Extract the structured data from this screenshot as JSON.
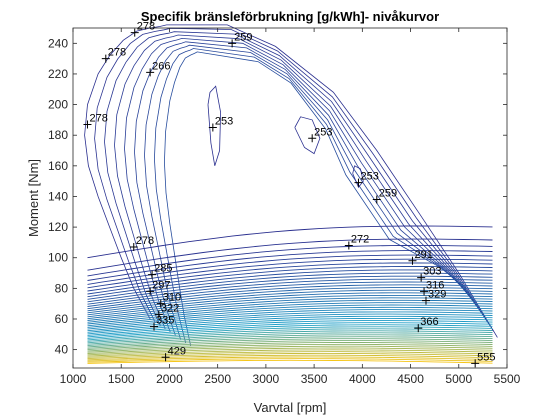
{
  "chart_data": {
    "type": "contour",
    "title": "Specifik bränsleförbrukning [g/kWh]- nivåkurvor",
    "xlabel": "Varvtal [rpm]",
    "ylabel": "Moment [Nm]",
    "xlim": [
      1000,
      5500
    ],
    "ylim": [
      28,
      250
    ],
    "xticks": [
      1000,
      1500,
      2000,
      2500,
      3000,
      3500,
      4000,
      4500,
      5000,
      5500
    ],
    "yticks": [
      40,
      60,
      80,
      100,
      120,
      140,
      160,
      180,
      200,
      220,
      240
    ],
    "grid": false,
    "colors": {
      "low": "#2a2f8f",
      "mid": "#1ea0c8",
      "high": "#f5c518"
    },
    "annotations": [
      {
        "label": "278",
        "x": 1640,
        "y": 247
      },
      {
        "label": "259",
        "x": 2650,
        "y": 240
      },
      {
        "label": "278",
        "x": 1340,
        "y": 230
      },
      {
        "label": "266",
        "x": 1800,
        "y": 221
      },
      {
        "label": "278",
        "x": 1150,
        "y": 187
      },
      {
        "label": "253",
        "x": 2450,
        "y": 185
      },
      {
        "label": "253",
        "x": 3480,
        "y": 178
      },
      {
        "label": "253",
        "x": 3960,
        "y": 149
      },
      {
        "label": "259",
        "x": 4150,
        "y": 138
      },
      {
        "label": "278",
        "x": 1630,
        "y": 107
      },
      {
        "label": "272",
        "x": 3860,
        "y": 108
      },
      {
        "label": "291",
        "x": 4520,
        "y": 98
      },
      {
        "label": "285",
        "x": 1820,
        "y": 89
      },
      {
        "label": "303",
        "x": 4610,
        "y": 87
      },
      {
        "label": "297",
        "x": 1800,
        "y": 78
      },
      {
        "label": "316",
        "x": 4640,
        "y": 78
      },
      {
        "label": "329",
        "x": 4660,
        "y": 72
      },
      {
        "label": "310",
        "x": 1910,
        "y": 70
      },
      {
        "label": "322",
        "x": 1890,
        "y": 63
      },
      {
        "label": "335",
        "x": 1840,
        "y": 55
      },
      {
        "label": "366",
        "x": 4580,
        "y": 54
      },
      {
        "label": "429",
        "x": 1960,
        "y": 35
      },
      {
        "label": "555",
        "x": 5170,
        "y": 31
      }
    ]
  }
}
